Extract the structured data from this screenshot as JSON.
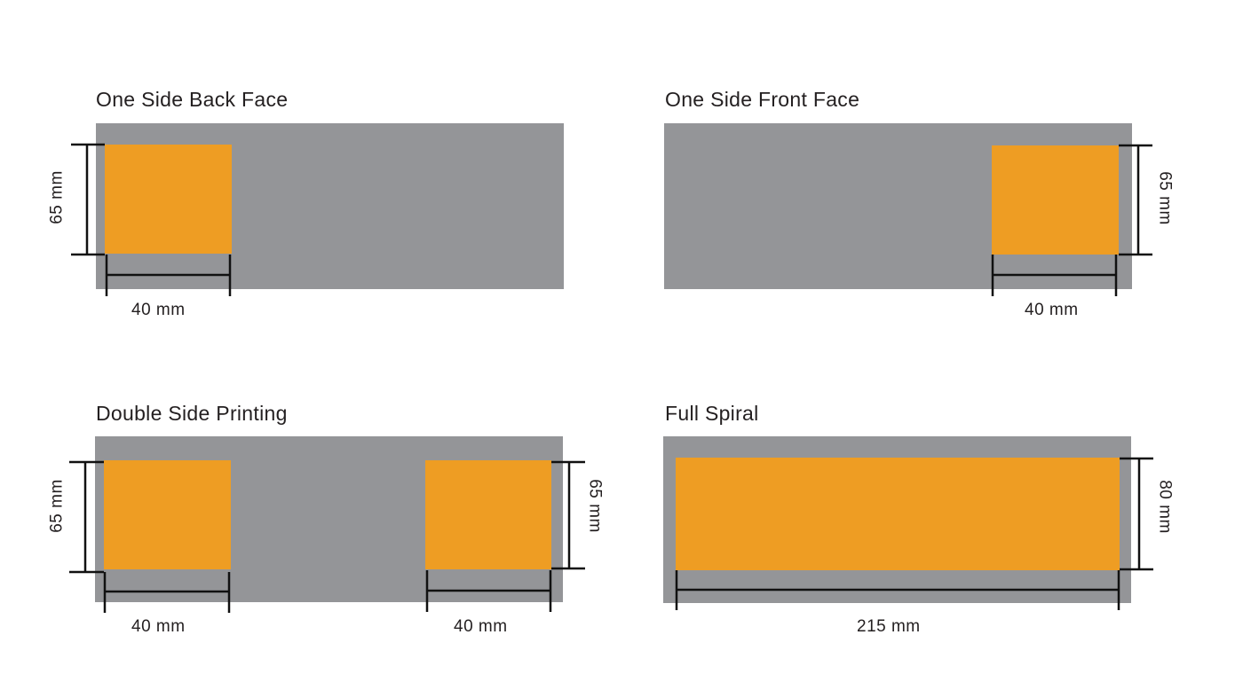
{
  "colors": {
    "band": "#949598",
    "print_area": "#ee9d23",
    "dimension_line": "#111111",
    "text": "#231f20"
  },
  "panels": [
    {
      "title": "One Side Back Face",
      "width_label": "40 mm",
      "height_label": "65 mm"
    },
    {
      "title": "One Side Front Face",
      "width_label": "40 mm",
      "height_label": "65 mm"
    },
    {
      "title": "Double Side Printing",
      "left_width_label": "40 mm",
      "left_height_label": "65 mm",
      "right_width_label": "40 mm",
      "right_height_label": "65 mm"
    },
    {
      "title": "Full Spiral",
      "width_label": "215 mm",
      "height_label": "80 mm"
    }
  ]
}
